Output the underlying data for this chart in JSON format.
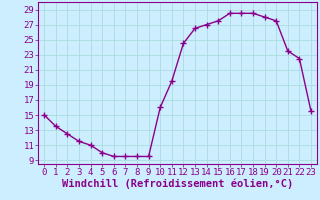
{
  "x": [
    0,
    1,
    2,
    3,
    4,
    5,
    6,
    7,
    8,
    9,
    10,
    11,
    12,
    13,
    14,
    15,
    16,
    17,
    18,
    19,
    20,
    21,
    22,
    23
  ],
  "y": [
    15,
    13.5,
    12.5,
    11.5,
    11,
    10,
    9.5,
    9.5,
    9.5,
    9.5,
    16,
    19.5,
    24.5,
    26.5,
    27,
    27.5,
    28.5,
    28.5,
    28.5,
    28,
    27.5,
    23.5,
    22.5,
    15.5
  ],
  "line_color": "#8B008B",
  "marker_color": "#8B008B",
  "background_color": "#cceeff",
  "grid_color": "#aadddd",
  "xlabel": "Windchill (Refroidissement éolien,°C)",
  "xlabel_color": "#8B008B",
  "tick_color": "#8B008B",
  "axis_color": "#8B008B",
  "ylim_min": 8.5,
  "ylim_max": 30.0,
  "xlim_min": -0.5,
  "xlim_max": 23.5,
  "yticks": [
    9,
    11,
    13,
    15,
    17,
    19,
    21,
    23,
    25,
    27,
    29
  ],
  "xticks": [
    0,
    1,
    2,
    3,
    4,
    5,
    6,
    7,
    8,
    9,
    10,
    11,
    12,
    13,
    14,
    15,
    16,
    17,
    18,
    19,
    20,
    21,
    22,
    23
  ],
  "marker_size": 2.5,
  "line_width": 1.0,
  "tick_font_size": 6.5,
  "xlabel_font_size": 7.5
}
